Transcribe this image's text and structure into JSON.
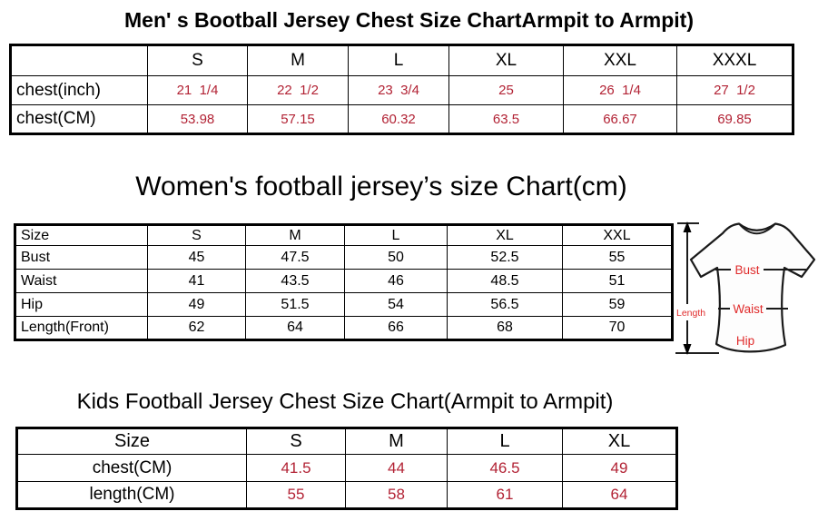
{
  "colors": {
    "value_red": "#B22234",
    "diagram_label_red": "#E02B2B",
    "border_black": "#000000",
    "background": "#ffffff"
  },
  "men_table": {
    "title": "Men' s Bootball Jersey Chest Size ChartArmpit to Armpit)",
    "columns": [
      "",
      "S",
      "M",
      "L",
      "XL",
      "XXL",
      "XXXL"
    ],
    "rows": [
      {
        "label": "chest(inch)",
        "values": [
          "21  1/4",
          "22  1/2",
          "23  3/4",
          "25",
          "26  1/4",
          "27  1/2"
        ]
      },
      {
        "label": "chest(CM)",
        "values": [
          "53.98",
          "57.15",
          "60.32",
          "63.5",
          "66.67",
          "69.85"
        ]
      }
    ]
  },
  "women_table": {
    "title": "Women's football jersey’s size Chart(cm)",
    "columns": [
      "Size",
      "S",
      "M",
      "L",
      "XL",
      "XXL"
    ],
    "rows": [
      {
        "label": "Bust",
        "values": [
          "45",
          "47.5",
          "50",
          "52.5",
          "55"
        ]
      },
      {
        "label": "Waist",
        "values": [
          "41",
          "43.5",
          "46",
          "48.5",
          "51"
        ]
      },
      {
        "label": "Hip",
        "values": [
          "49",
          "51.5",
          "54",
          "56.5",
          "59"
        ]
      },
      {
        "label": "Length(Front)",
        "values": [
          "62",
          "64",
          "66",
          "68",
          "70"
        ]
      }
    ]
  },
  "kids_table": {
    "title": "Kids Football Jersey Chest Size Chart(Armpit to Armpit)",
    "columns": [
      "Size",
      "S",
      "M",
      "L",
      "XL"
    ],
    "rows": [
      {
        "label": "chest(CM)",
        "values": [
          "41.5",
          "44",
          "46.5",
          "49"
        ]
      },
      {
        "label": "length(CM)",
        "values": [
          "55",
          "58",
          "61",
          "64"
        ]
      }
    ]
  },
  "diagram": {
    "length_label": "Length",
    "bust_label": "Bust",
    "waist_label": "Waist",
    "hip_label": "Hip"
  }
}
